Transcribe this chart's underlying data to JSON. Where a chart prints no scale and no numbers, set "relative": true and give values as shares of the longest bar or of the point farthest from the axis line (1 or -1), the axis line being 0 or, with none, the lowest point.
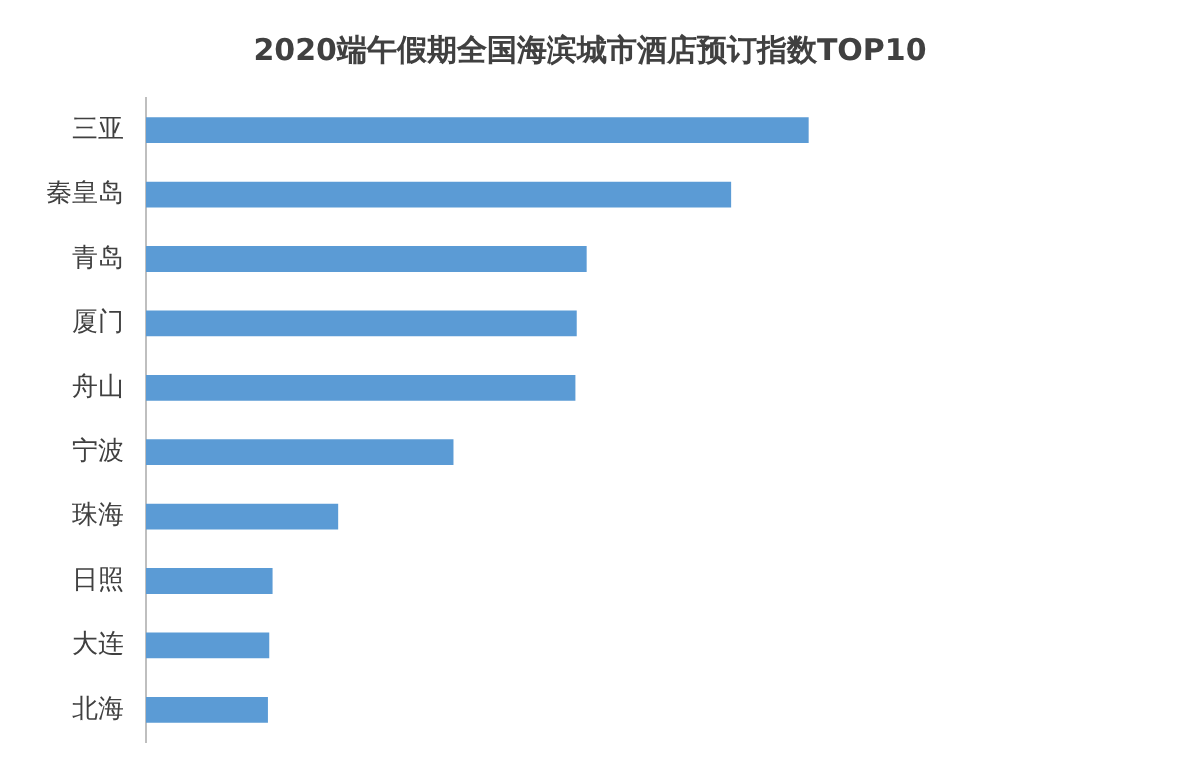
{
  "chart_data": {
    "type": "bar",
    "orientation": "horizontal",
    "relative": true,
    "title": "2020端午假期全国海滨城市酒店预订指数TOP10",
    "categories": [
      "三亚",
      "秦皇岛",
      "青岛",
      "厦门",
      "舟山",
      "宁波",
      "珠海",
      "日照",
      "大连",
      "北海"
    ],
    "values": [
      1,
      0.883,
      0.665,
      0.65,
      0.648,
      0.464,
      0.29,
      0.191,
      0.186,
      0.184
    ],
    "color": "#5b9bd5",
    "legend": false
  }
}
